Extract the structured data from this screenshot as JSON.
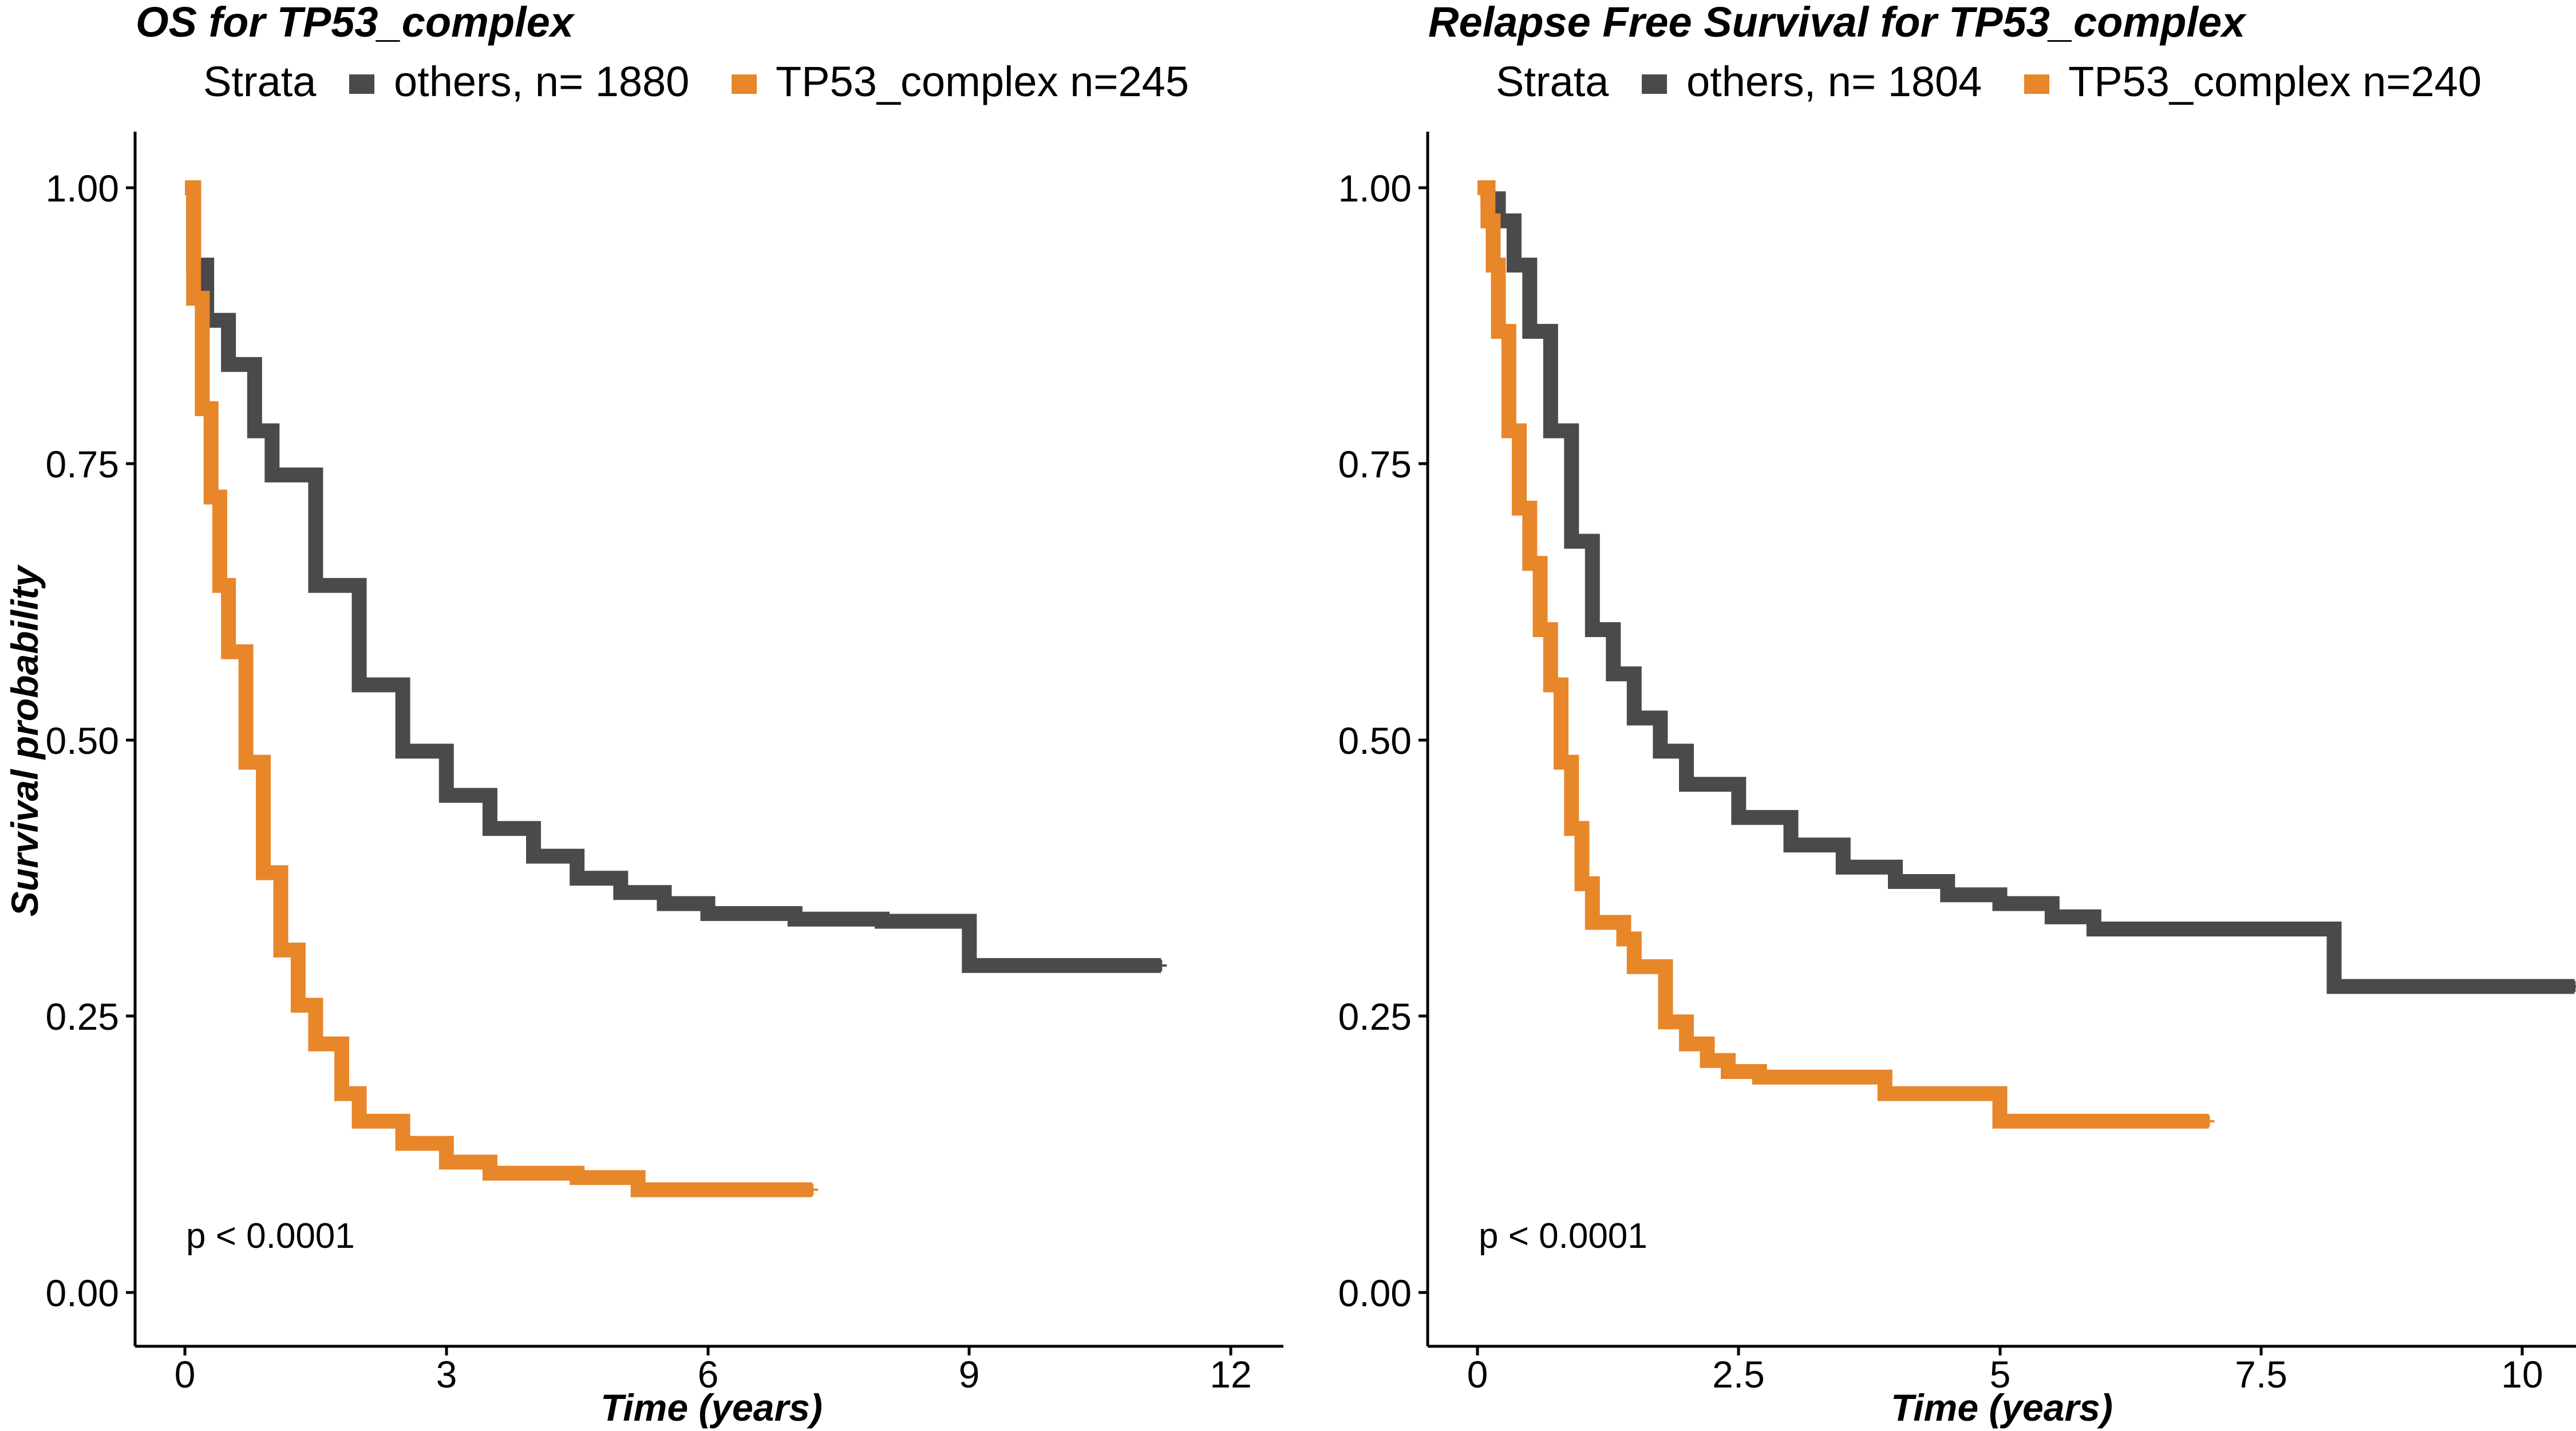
{
  "chart_data": [
    {
      "type": "line",
      "subtype": "kaplan-meier",
      "title": "OS  for  TP53_complex",
      "legend_title": "Strata",
      "legend_position": "top",
      "xlabel": "Time (years)",
      "ylabel": "Survival probability",
      "xlim": [
        0,
        12
      ],
      "ylim": [
        0,
        1
      ],
      "xticks": [
        "0",
        "3",
        "6",
        "9",
        "12"
      ],
      "yticks": [
        "0.00",
        "0.25",
        "0.50",
        "0.75",
        "1.00"
      ],
      "grid": false,
      "annotation": "p < 0.0001",
      "series": [
        {
          "name": "others, n= 1880",
          "color": "#4a4a4a",
          "points": [
            [
              0,
              1.0
            ],
            [
              0.1,
              0.93
            ],
            [
              0.25,
              0.88
            ],
            [
              0.5,
              0.84
            ],
            [
              0.8,
              0.78
            ],
            [
              1.0,
              0.74
            ],
            [
              1.5,
              0.64
            ],
            [
              2.0,
              0.55
            ],
            [
              2.5,
              0.49
            ],
            [
              3.0,
              0.45
            ],
            [
              3.5,
              0.42
            ],
            [
              4.0,
              0.395
            ],
            [
              4.5,
              0.375
            ],
            [
              5.0,
              0.362
            ],
            [
              5.5,
              0.352
            ],
            [
              6.0,
              0.343
            ],
            [
              7.0,
              0.338
            ],
            [
              8.0,
              0.336
            ],
            [
              9.0,
              0.336
            ],
            [
              9.0,
              0.296
            ],
            [
              11.2,
              0.296
            ]
          ]
        },
        {
          "name": "TP53_complex n=245",
          "color": "#e8862a",
          "points": [
            [
              0,
              1.0
            ],
            [
              0.1,
              0.9
            ],
            [
              0.2,
              0.8
            ],
            [
              0.3,
              0.72
            ],
            [
              0.4,
              0.64
            ],
            [
              0.5,
              0.58
            ],
            [
              0.7,
              0.48
            ],
            [
              0.9,
              0.38
            ],
            [
              1.1,
              0.31
            ],
            [
              1.3,
              0.26
            ],
            [
              1.5,
              0.225
            ],
            [
              1.8,
              0.18
            ],
            [
              2.0,
              0.155
            ],
            [
              2.5,
              0.135
            ],
            [
              3.0,
              0.118
            ],
            [
              3.5,
              0.108
            ],
            [
              4.5,
              0.104
            ],
            [
              5.2,
              0.104
            ],
            [
              5.2,
              0.093
            ],
            [
              7.2,
              0.093
            ]
          ]
        }
      ]
    },
    {
      "type": "line",
      "subtype": "kaplan-meier",
      "title": "Relapse Free Survival for  TP53_complex",
      "legend_title": "Strata",
      "legend_position": "top",
      "xlabel": "Time (years)",
      "ylabel": "",
      "xlim": [
        0,
        10.5
      ],
      "ylim": [
        0,
        1
      ],
      "xticks": [
        "0",
        "2.5",
        "5",
        "7.5",
        "10"
      ],
      "yticks": [
        "0.00",
        "0.25",
        "0.50",
        "0.75",
        "1.00"
      ],
      "grid": false,
      "annotation": "p < 0.0001",
      "series": [
        {
          "name": "others, n= 1804",
          "color": "#4a4a4a",
          "points": [
            [
              0,
              1.0
            ],
            [
              0.1,
              0.99
            ],
            [
              0.2,
              0.97
            ],
            [
              0.35,
              0.93
            ],
            [
              0.5,
              0.87
            ],
            [
              0.7,
              0.78
            ],
            [
              0.9,
              0.68
            ],
            [
              1.1,
              0.6
            ],
            [
              1.3,
              0.56
            ],
            [
              1.5,
              0.52
            ],
            [
              1.75,
              0.49
            ],
            [
              2.0,
              0.46
            ],
            [
              2.5,
              0.43
            ],
            [
              3.0,
              0.405
            ],
            [
              3.5,
              0.385
            ],
            [
              4.0,
              0.372
            ],
            [
              4.5,
              0.36
            ],
            [
              5.0,
              0.352
            ],
            [
              5.5,
              0.34
            ],
            [
              5.9,
              0.329
            ],
            [
              7.0,
              0.329
            ],
            [
              8.2,
              0.329
            ],
            [
              8.2,
              0.277
            ],
            [
              10.5,
              0.277
            ]
          ]
        },
        {
          "name": "TP53_complex n=240",
          "color": "#e8862a",
          "points": [
            [
              0,
              1.0
            ],
            [
              0.1,
              0.97
            ],
            [
              0.15,
              0.93
            ],
            [
              0.2,
              0.87
            ],
            [
              0.3,
              0.78
            ],
            [
              0.4,
              0.71
            ],
            [
              0.5,
              0.66
            ],
            [
              0.6,
              0.6
            ],
            [
              0.7,
              0.55
            ],
            [
              0.8,
              0.48
            ],
            [
              0.9,
              0.42
            ],
            [
              1.0,
              0.37
            ],
            [
              1.1,
              0.335
            ],
            [
              1.4,
              0.32
            ],
            [
              1.5,
              0.295
            ],
            [
              1.8,
              0.245
            ],
            [
              2.0,
              0.225
            ],
            [
              2.2,
              0.21
            ],
            [
              2.4,
              0.2
            ],
            [
              2.7,
              0.195
            ],
            [
              3.9,
              0.195
            ],
            [
              3.9,
              0.18
            ],
            [
              5.0,
              0.18
            ],
            [
              5.0,
              0.155
            ],
            [
              7.0,
              0.155
            ]
          ]
        }
      ]
    }
  ]
}
